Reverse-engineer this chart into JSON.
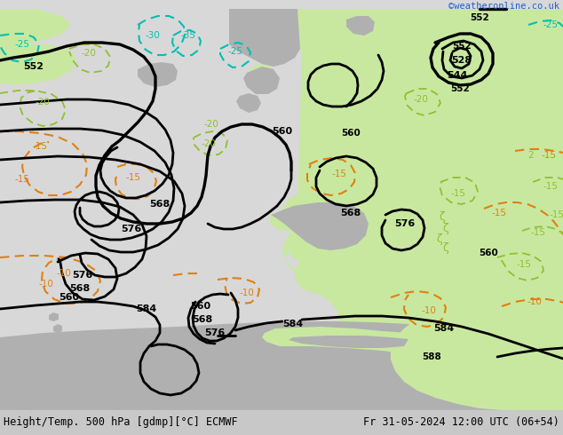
{
  "title_left": "Height/Temp. 500 hPa [gdmp][°C] ECMWF",
  "title_right": "Fr 31-05-2024 12:00 UTC (06+54)",
  "credit": "©weatheronline.co.uk",
  "bg_color": "#e0e0e0",
  "land_green_color": "#c8e8a0",
  "land_gray_color": "#b0b0b0",
  "contour_color": "#000000",
  "temp_warm_color": "#e08010",
  "temp_cyan_color": "#00c0b0",
  "temp_green_color": "#90c030",
  "title_fontsize": 9,
  "credit_color": "#2060d0",
  "bottom_bar_color": "#c8c8c8",
  "fig_width": 6.34,
  "fig_height": 4.9,
  "fig_dpi": 100
}
